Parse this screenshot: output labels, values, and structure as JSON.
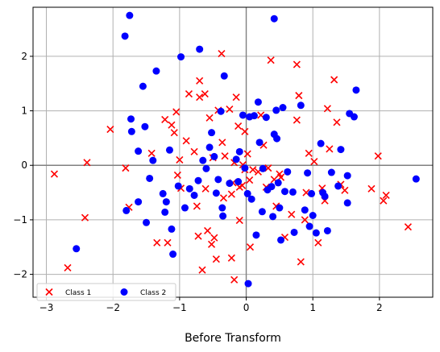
{
  "chart_data": {
    "type": "scatter",
    "title": "",
    "xlabel": "Before Transform",
    "ylabel": "",
    "xlim": [
      -3.2,
      2.8
    ],
    "ylim": [
      -2.42,
      2.9
    ],
    "xticks": [
      -3,
      -2,
      -1,
      0,
      1,
      2
    ],
    "yticks": [
      -2,
      -1,
      0,
      1,
      2
    ],
    "xtick_labels": [
      "−3",
      "−2",
      "−1",
      "0",
      "1",
      "2"
    ],
    "ytick_labels": [
      "−2",
      "−1",
      "0",
      "1",
      "2"
    ],
    "grid": true,
    "zero_lines": true,
    "legend": {
      "position": "lower-left",
      "ncol": 2
    },
    "colors": {
      "class1": "#ff0000",
      "class2": "#0000ff",
      "grid": "#b0b0b0",
      "axis_zero": "#808080"
    },
    "series": [
      {
        "name": "Class 1",
        "marker": "x",
        "color": "#ff0000",
        "points": [
          [
            -2.88,
            -0.16
          ],
          [
            -2.68,
            -1.88
          ],
          [
            -2.39,
            0.05
          ],
          [
            -2.42,
            -0.96
          ],
          [
            -2.04,
            0.66
          ],
          [
            -1.81,
            -0.05
          ],
          [
            -1.76,
            -0.77
          ],
          [
            -1.42,
            0.22
          ],
          [
            -1.34,
            -1.42
          ],
          [
            -1.22,
            0.84
          ],
          [
            -1.18,
            -1.42
          ],
          [
            -1.12,
            0.74
          ],
          [
            -1.08,
            0.6
          ],
          [
            -1.05,
            0.98
          ],
          [
            -1.03,
            -0.18
          ],
          [
            -1.0,
            0.1
          ],
          [
            -0.98,
            -0.42
          ],
          [
            -0.86,
            1.31
          ],
          [
            -0.78,
            0.25
          ],
          [
            -0.74,
            -0.75
          ],
          [
            -0.72,
            -1.3
          ],
          [
            -0.7,
            1.55
          ],
          [
            -0.7,
            1.25
          ],
          [
            -0.62,
            1.31
          ],
          [
            -0.61,
            -0.43
          ],
          [
            -0.58,
            -1.2
          ],
          [
            -0.55,
            0.87
          ],
          [
            -0.52,
            -1.45
          ],
          [
            -0.5,
            0.14
          ],
          [
            -0.48,
            -1.33
          ],
          [
            -0.45,
            -1.72
          ],
          [
            -0.42,
            1.01
          ],
          [
            -0.37,
            2.05
          ],
          [
            -0.36,
            0.42
          ],
          [
            -0.34,
            -0.6
          ],
          [
            -0.32,
            0.17
          ],
          [
            -0.25,
            1.03
          ],
          [
            -0.22,
            -0.53
          ],
          [
            -0.2,
            -0.32
          ],
          [
            -0.18,
            0.05
          ],
          [
            -0.15,
            1.25
          ],
          [
            -0.12,
            0.72
          ],
          [
            -0.1,
            -1.01
          ],
          [
            -0.06,
            -0.37
          ],
          [
            -0.02,
            0.62
          ],
          [
            -0.05,
            0.01
          ],
          [
            -0.22,
            -1.7
          ],
          [
            -0.18,
            -2.1
          ],
          [
            0.02,
            0.21
          ],
          [
            0.06,
            -1.5
          ],
          [
            0.1,
            -0.08
          ],
          [
            0.18,
            -0.12
          ],
          [
            0.22,
            0.92
          ],
          [
            0.26,
            0.37
          ],
          [
            0.3,
            -0.4
          ],
          [
            0.33,
            -0.05
          ],
          [
            0.37,
            1.93
          ],
          [
            0.42,
            -0.26
          ],
          [
            0.45,
            -0.75
          ],
          [
            0.5,
            -0.16
          ],
          [
            0.52,
            -0.22
          ],
          [
            0.58,
            -1.32
          ],
          [
            0.68,
            -0.9
          ],
          [
            0.76,
            0.83
          ],
          [
            0.79,
            1.28
          ],
          [
            0.76,
            1.85
          ],
          [
            0.82,
            -1.77
          ],
          [
            0.88,
            -1.0
          ],
          [
            0.94,
            0.22
          ],
          [
            1.02,
            0.07
          ],
          [
            1.08,
            -1.42
          ],
          [
            1.14,
            -0.42
          ],
          [
            1.18,
            -0.65
          ],
          [
            1.22,
            1.04
          ],
          [
            1.25,
            0.3
          ],
          [
            1.32,
            1.57
          ],
          [
            1.36,
            0.79
          ],
          [
            1.42,
            -0.35
          ],
          [
            1.48,
            -0.46
          ],
          [
            1.88,
            -0.43
          ],
          [
            1.98,
            0.17
          ],
          [
            2.06,
            -0.65
          ],
          [
            2.1,
            -0.55
          ],
          [
            2.43,
            -1.13
          ],
          [
            -0.02,
            -0.08
          ],
          [
            0.05,
            -0.27
          ],
          [
            -0.66,
            -1.92
          ],
          [
            -0.1,
            -0.4
          ],
          [
            0.9,
            -0.5
          ],
          [
            -0.9,
            0.45
          ]
        ]
      },
      {
        "name": "Class 2",
        "marker": "o",
        "color": "#0000ff",
        "points": [
          [
            -2.55,
            -1.53
          ],
          [
            -1.82,
            2.37
          ],
          [
            -1.75,
            2.75
          ],
          [
            -1.73,
            0.85
          ],
          [
            -1.72,
            0.62
          ],
          [
            -1.62,
            0.26
          ],
          [
            -1.55,
            1.45
          ],
          [
            -1.52,
            0.71
          ],
          [
            -1.5,
            -1.05
          ],
          [
            -1.45,
            -0.24
          ],
          [
            -1.4,
            0.09
          ],
          [
            -1.35,
            1.73
          ],
          [
            -1.25,
            -0.52
          ],
          [
            -1.22,
            -0.86
          ],
          [
            -1.2,
            -0.67
          ],
          [
            -1.15,
            0.28
          ],
          [
            -1.12,
            -1.17
          ],
          [
            -1.1,
            -1.63
          ],
          [
            -1.02,
            -0.38
          ],
          [
            -0.98,
            1.99
          ],
          [
            -0.92,
            -0.78
          ],
          [
            -0.85,
            -0.43
          ],
          [
            -0.78,
            -0.55
          ],
          [
            -0.72,
            -0.28
          ],
          [
            -0.7,
            2.13
          ],
          [
            -0.65,
            0.09
          ],
          [
            -0.6,
            -0.06
          ],
          [
            -0.55,
            0.33
          ],
          [
            -0.52,
            0.6
          ],
          [
            -0.48,
            0.16
          ],
          [
            -0.45,
            -0.51
          ],
          [
            -0.42,
            -0.26
          ],
          [
            -0.38,
            0.99
          ],
          [
            -0.36,
            -0.78
          ],
          [
            -0.35,
            -0.93
          ],
          [
            -0.33,
            1.64
          ],
          [
            -0.25,
            -0.33
          ],
          [
            -0.15,
            0.11
          ],
          [
            -0.12,
            -0.3
          ],
          [
            -0.1,
            0.25
          ],
          [
            -0.05,
            0.92
          ],
          [
            -0.02,
            -0.05
          ],
          [
            0.02,
            -0.52
          ],
          [
            0.05,
            0.89
          ],
          [
            0.08,
            -0.62
          ],
          [
            0.12,
            0.91
          ],
          [
            0.15,
            -1.28
          ],
          [
            0.18,
            1.16
          ],
          [
            0.2,
            0.42
          ],
          [
            0.24,
            -0.85
          ],
          [
            0.25,
            -0.06
          ],
          [
            0.3,
            0.88
          ],
          [
            0.32,
            -0.45
          ],
          [
            0.38,
            -0.39
          ],
          [
            0.4,
            -0.94
          ],
          [
            0.42,
            0.57
          ],
          [
            0.45,
            1.01
          ],
          [
            0.46,
            0.49
          ],
          [
            0.48,
            -0.32
          ],
          [
            0.5,
            -0.78
          ],
          [
            0.52,
            -1.37
          ],
          [
            0.55,
            1.06
          ],
          [
            0.58,
            -0.48
          ],
          [
            0.62,
            -0.12
          ],
          [
            0.7,
            -0.49
          ],
          [
            0.72,
            -1.23
          ],
          [
            0.82,
            1.1
          ],
          [
            0.88,
            -0.82
          ],
          [
            0.92,
            -0.14
          ],
          [
            0.95,
            -1.12
          ],
          [
            0.98,
            -0.52
          ],
          [
            1.0,
            -0.92
          ],
          [
            1.05,
            -1.24
          ],
          [
            1.12,
            0.4
          ],
          [
            1.18,
            -0.57
          ],
          [
            1.22,
            -1.2
          ],
          [
            1.28,
            -0.13
          ],
          [
            1.38,
            -0.38
          ],
          [
            1.42,
            0.29
          ],
          [
            1.52,
            -0.19
          ],
          [
            1.52,
            -0.69
          ],
          [
            1.55,
            0.95
          ],
          [
            1.62,
            0.89
          ],
          [
            1.65,
            1.38
          ],
          [
            2.55,
            -0.25
          ],
          [
            0.03,
            -2.17
          ],
          [
            0.42,
            2.69
          ],
          [
            -1.8,
            -0.83
          ],
          [
            -1.62,
            -0.67
          ],
          [
            1.15,
            -0.5
          ]
        ]
      }
    ]
  }
}
